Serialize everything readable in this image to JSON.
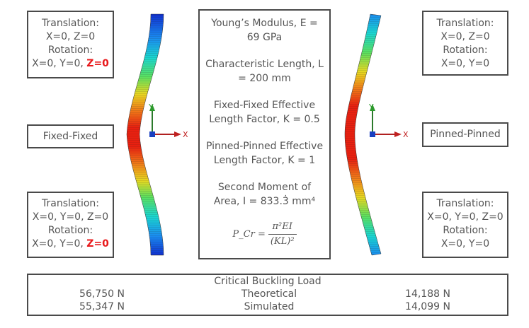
{
  "left_top": {
    "line1": "Translation:",
    "line2": "X=0, Z=0",
    "line3": "Rotation:",
    "line4a": "X=0, Y=0, ",
    "line4b": "Z=0"
  },
  "left_mid": {
    "label": "Fixed-Fixed"
  },
  "left_bottom": {
    "line1": "Translation:",
    "line2": "X=0, Y=0, Z=0",
    "line3": "Rotation:",
    "line4a": "X=0, Y=0, ",
    "line4b": "Z=0"
  },
  "right_top": {
    "line1": "Translation:",
    "line2": "X=0, Z=0",
    "line3": "Rotation:",
    "line4": "X=0, Y=0"
  },
  "right_mid": {
    "label": "Pinned-Pinned"
  },
  "right_bottom": {
    "line1": "Translation:",
    "line2": "X=0, Y=0, Z=0",
    "line3": "Rotation:",
    "line4": "X=0, Y=0"
  },
  "center": {
    "youngs_a": "Young’s Modulus, E =",
    "youngs_b": "69 GPa",
    "length_a": "Characteristic Length, L",
    "length_b": "= 200 mm",
    "ff_a": "Fixed-Fixed Effective",
    "ff_b": "Length Factor, K = 0.5",
    "pp_a": "Pinned-Pinned Effective",
    "pp_b": "Length Factor, K = 1",
    "moment_a": "Second Moment of",
    "moment_b": "Area, I = 833.3̇ mm⁴",
    "formula_lhs": "P_Cr =",
    "formula_num": "π²EI",
    "formula_den": "(KL)²"
  },
  "axes": {
    "y_label": "Y",
    "x_label": "X"
  },
  "results": {
    "title": "Critical Buckling Load",
    "row1": {
      "left": "56,750 N",
      "mid": "Theoretical",
      "right": "14,188 N"
    },
    "row2": {
      "left": "55,347 N",
      "mid": "Simulated",
      "right": "14,099 N"
    }
  }
}
